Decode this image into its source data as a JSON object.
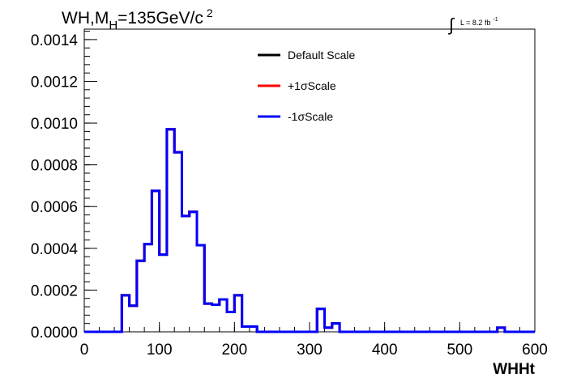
{
  "chart_data": {
    "type": "line",
    "title": "WH,M",
    "title_sub": "H",
    "title_rest": "=135GeV/c",
    "title_sup": "2",
    "lumi_integral": "∫",
    "lumi_text": "L = 8.2 fb",
    "lumi_sup": "-1",
    "xlabel": "WHHt",
    "ylabel": "",
    "xlim": [
      0,
      600
    ],
    "ylim": [
      0,
      0.00145
    ],
    "x_ticks": [
      "0",
      "100",
      "200",
      "300",
      "400",
      "500",
      "600"
    ],
    "x_tick_values": [
      0,
      100,
      200,
      300,
      400,
      500,
      600
    ],
    "y_ticks": [
      "0.0000",
      "0.0002",
      "0.0004",
      "0.0006",
      "0.0008",
      "0.0010",
      "0.0012",
      "0.0014"
    ],
    "y_tick_values": [
      0,
      0.0002,
      0.0004,
      0.0006,
      0.0008,
      0.001,
      0.0012,
      0.0014
    ],
    "grid": false,
    "legend_position": "top-right",
    "bin_width": 10,
    "bin_edges_start": 0,
    "series": [
      {
        "name": "Default Scale",
        "color": "#000000",
        "values": [
          0,
          0,
          0,
          0,
          0,
          0.000175,
          0.000125,
          0.00034,
          0.00042,
          0.000675,
          0.00037,
          0.00097,
          0.00086,
          0.000555,
          0.000575,
          0.000415,
          0.000135,
          0.00013,
          0.000155,
          9.5e-05,
          0.000175,
          2.5e-05,
          2.5e-05,
          0.0,
          0.0,
          0.0,
          0.0,
          0.0,
          0.0,
          0.0,
          0.0,
          0.00011,
          2e-05,
          4e-05,
          0.0,
          0.0,
          0.0,
          0.0,
          0.0,
          0.0,
          0.0,
          0.0,
          0.0,
          0.0,
          0.0,
          0.0,
          0.0,
          0.0,
          0.0,
          0.0,
          0.0,
          0.0,
          0.0,
          0.0,
          0.0,
          2e-05,
          0.0,
          0.0,
          0.0,
          0.0
        ]
      },
      {
        "name": "+1σScale",
        "color": "#ff0000",
        "values": [
          0,
          0,
          0,
          0,
          0,
          0.000175,
          0.000125,
          0.00034,
          0.00042,
          0.000675,
          0.00037,
          0.00097,
          0.00086,
          0.000555,
          0.000575,
          0.000415,
          0.000135,
          0.00013,
          0.000155,
          9.5e-05,
          0.000175,
          2.5e-05,
          2.5e-05,
          0.0,
          0.0,
          0.0,
          0.0,
          0.0,
          0.0,
          0.0,
          0.0,
          0.00011,
          2e-05,
          4e-05,
          0.0,
          0.0,
          0.0,
          0.0,
          0.0,
          0.0,
          0.0,
          0.0,
          0.0,
          0.0,
          0.0,
          0.0,
          0.0,
          0.0,
          0.0,
          0.0,
          0.0,
          0.0,
          0.0,
          0.0,
          0.0,
          2e-05,
          0.0,
          0.0,
          0.0,
          0.0
        ]
      },
      {
        "name": "-1σScale",
        "color": "#0000ff",
        "values": [
          0,
          0,
          0,
          0,
          0,
          0.000175,
          0.000125,
          0.00034,
          0.00042,
          0.000675,
          0.00037,
          0.00097,
          0.00086,
          0.000555,
          0.000575,
          0.000415,
          0.000135,
          0.00013,
          0.000155,
          9.5e-05,
          0.000175,
          2.5e-05,
          2.5e-05,
          0.0,
          0.0,
          0.0,
          0.0,
          0.0,
          0.0,
          0.0,
          0.0,
          0.00011,
          2e-05,
          4e-05,
          0.0,
          0.0,
          0.0,
          0.0,
          0.0,
          0.0,
          0.0,
          0.0,
          0.0,
          0.0,
          0.0,
          0.0,
          0.0,
          0.0,
          0.0,
          0.0,
          0.0,
          0.0,
          0.0,
          0.0,
          0.0,
          2e-05,
          0.0,
          0.0,
          0.0,
          0.0
        ]
      }
    ]
  }
}
